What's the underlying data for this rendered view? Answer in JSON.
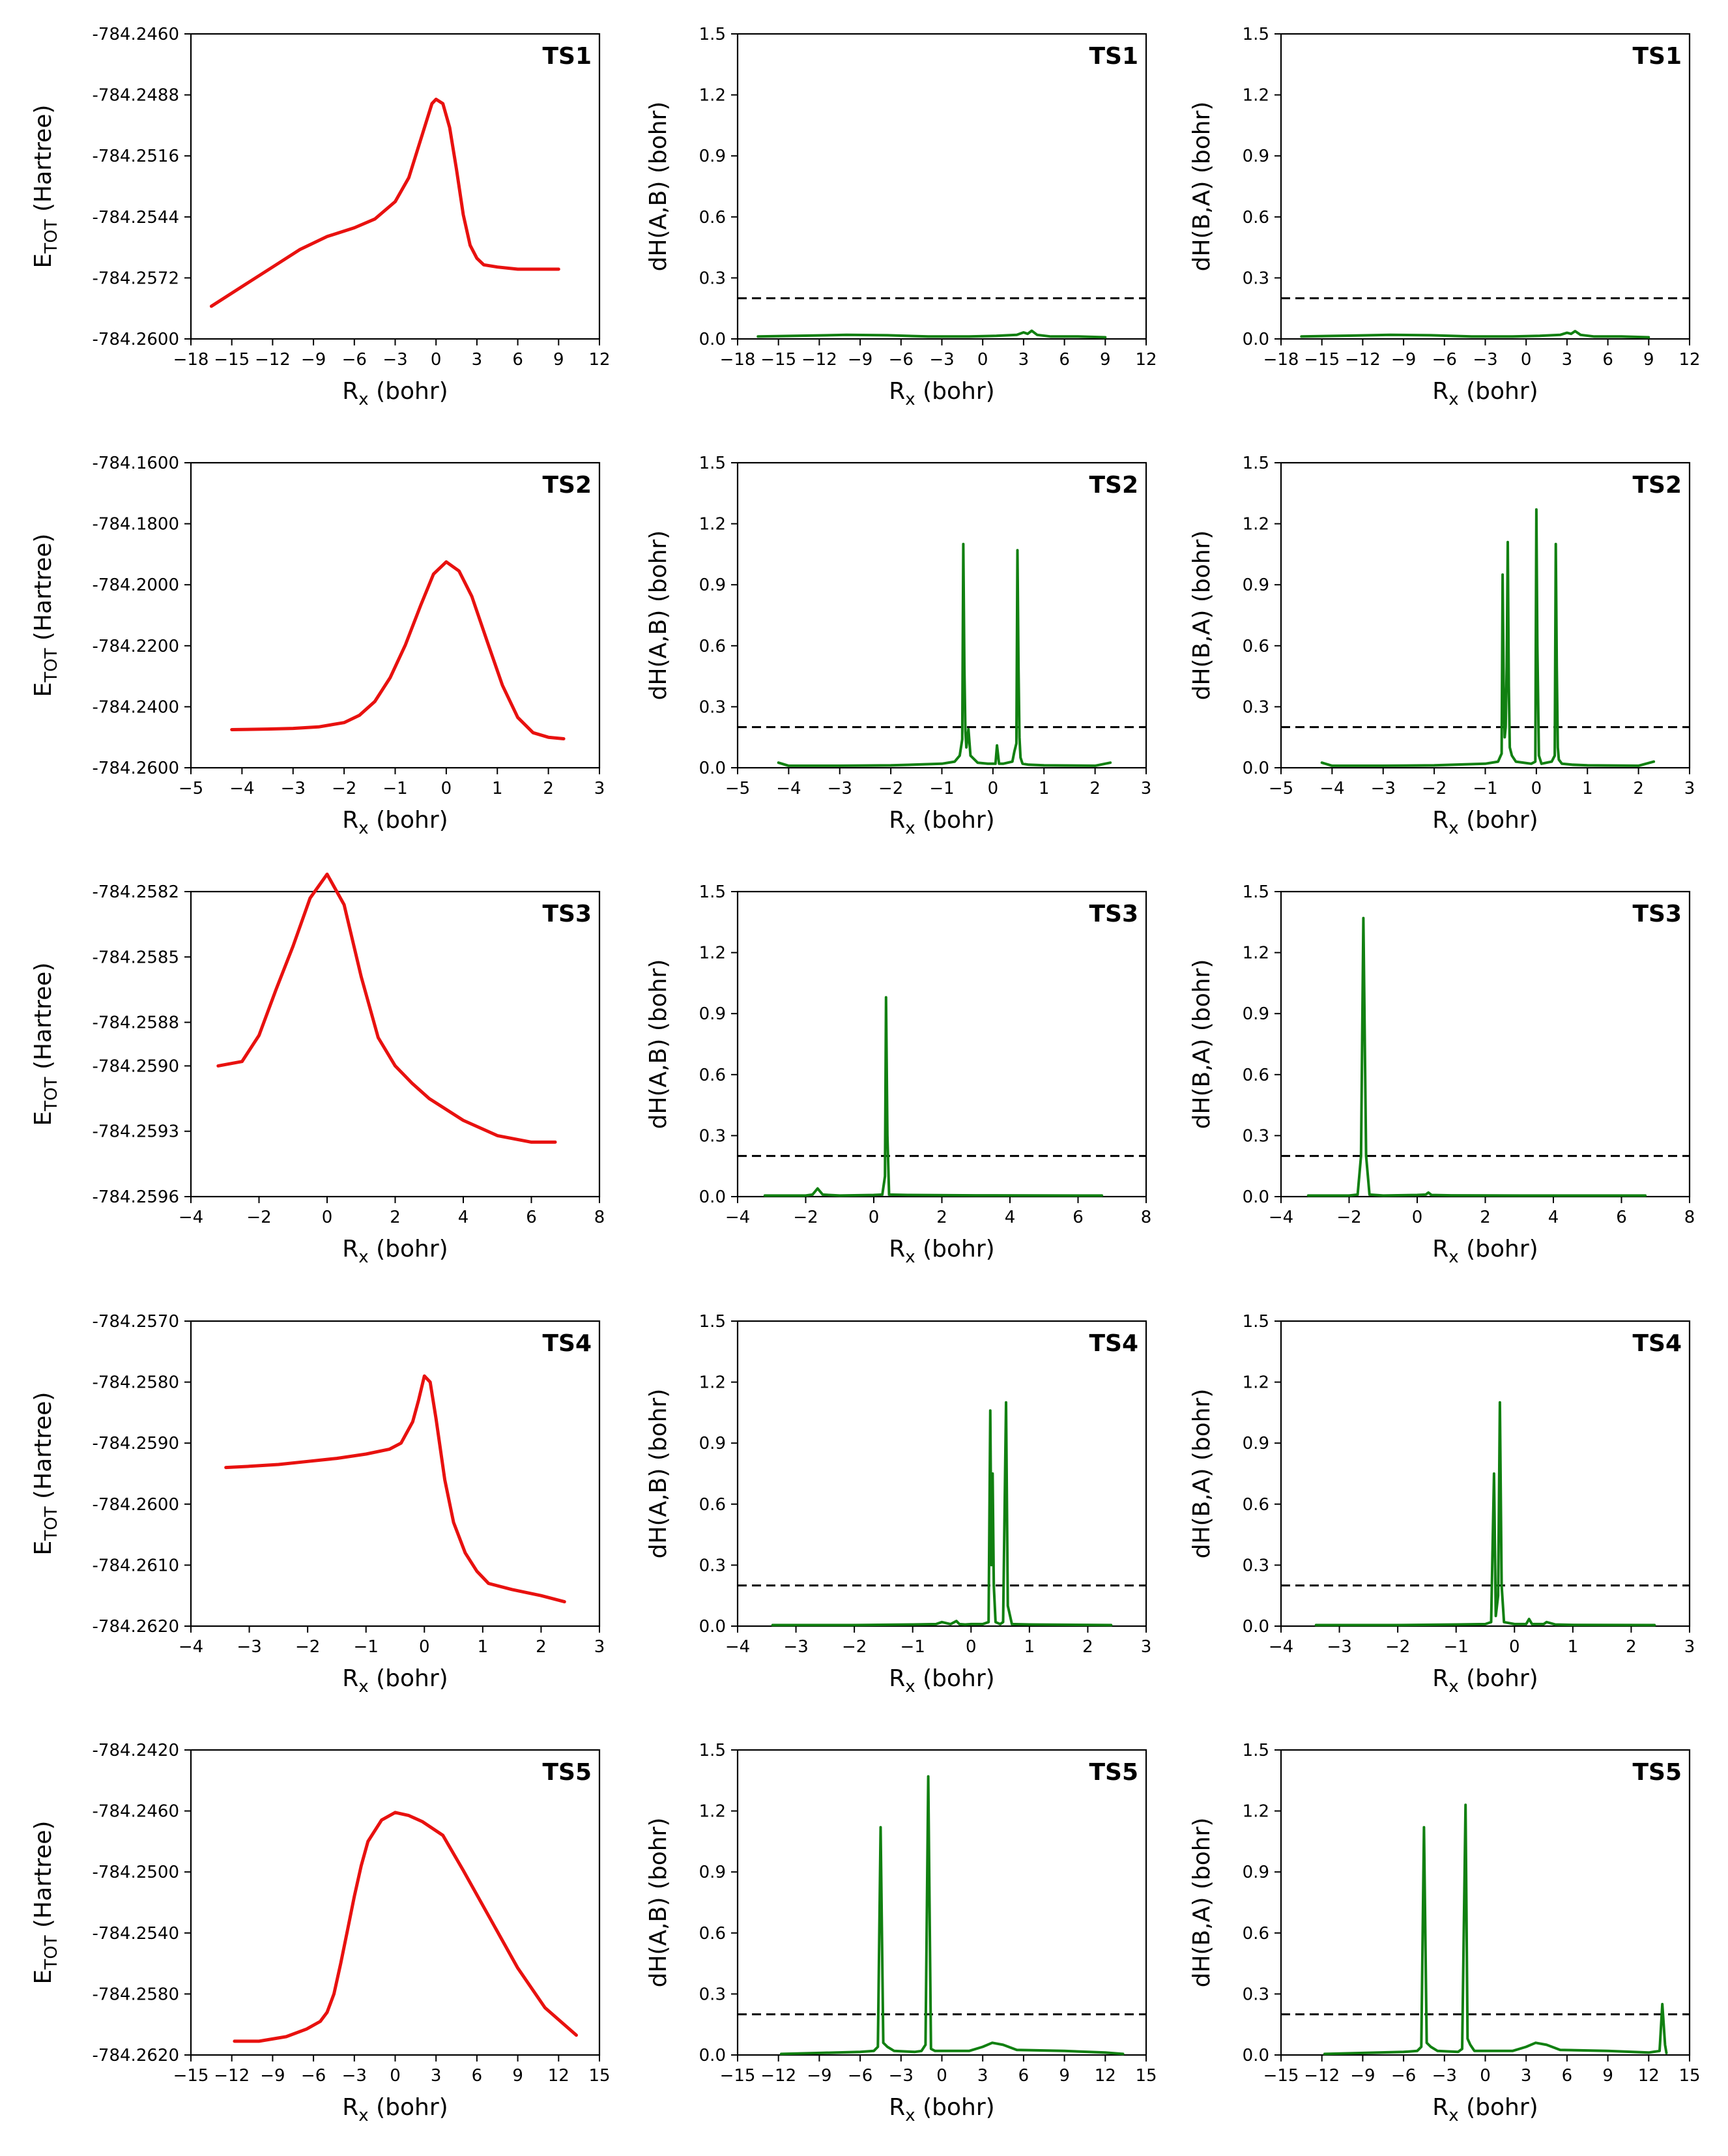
{
  "figure": {
    "ylabel_energy": {
      "main": "E",
      "sub": "TOT",
      "unit": " (Hartree)"
    },
    "xlabel": {
      "main": "R",
      "sub": "x",
      "unit": " (bohr)"
    },
    "ylabel_dh_ab": "dH(A,B) (bohr)",
    "ylabel_dh_ba": "dH(B,A) (bohr)",
    "threshold": 0.2,
    "colors": {
      "energy": "#e8110f",
      "dh": "#118011",
      "threshold": "#000000",
      "axes": "#000000",
      "background": "#ffffff"
    }
  },
  "chart_data": [
    {
      "id": "TS1",
      "title": "TS1",
      "xlim": [
        -18,
        12
      ],
      "xticks": [
        -18,
        -15,
        -12,
        -9,
        -6,
        -3,
        0,
        3,
        6,
        9,
        12
      ],
      "energy": {
        "type": "line",
        "ylim": [
          -784.26,
          -784.246
        ],
        "yticks": [
          -784.26,
          -784.2572,
          -784.2544,
          -784.2516,
          -784.2488,
          -784.246
        ],
        "ydecimals": 4,
        "x": [
          -16.5,
          -14,
          -12,
          -10,
          -8,
          -6,
          -4.5,
          -3,
          -2,
          -1,
          -0.3,
          0,
          0.5,
          1,
          1.5,
          2,
          2.5,
          3,
          3.5,
          4.5,
          6,
          7.5,
          9
        ],
        "y": [
          -784.2585,
          -784.2575,
          -784.2567,
          -784.2559,
          -784.2553,
          -784.2549,
          -784.2545,
          -784.2537,
          -784.2526,
          -784.2506,
          -784.2492,
          -784.249,
          -784.2492,
          -784.2503,
          -784.2522,
          -784.2543,
          -784.2557,
          -784.2563,
          -784.2566,
          -784.2567,
          -784.2568,
          -784.2568,
          -784.2568
        ]
      },
      "dh_ab": {
        "type": "line",
        "ylim": [
          0,
          1.5
        ],
        "yticks": [
          0,
          0.3,
          0.6,
          0.9,
          1.2,
          1.5
        ],
        "ydecimals": 1,
        "x": [
          -16.5,
          -13,
          -10,
          -7,
          -4,
          -1,
          1,
          2.5,
          3,
          3.3,
          3.6,
          4,
          5,
          7,
          9
        ],
        "y": [
          0.012,
          0.016,
          0.02,
          0.018,
          0.012,
          0.012,
          0.015,
          0.02,
          0.032,
          0.025,
          0.04,
          0.02,
          0.012,
          0.012,
          0.008
        ]
      },
      "dh_ba": {
        "type": "line",
        "ylim": [
          0,
          1.5
        ],
        "yticks": [
          0,
          0.3,
          0.6,
          0.9,
          1.2,
          1.5
        ],
        "ydecimals": 1,
        "x": [
          -16.5,
          -13,
          -10,
          -7,
          -4,
          -1,
          1,
          2.5,
          3,
          3.3,
          3.6,
          4,
          5,
          7,
          9
        ],
        "y": [
          0.012,
          0.016,
          0.02,
          0.018,
          0.012,
          0.012,
          0.015,
          0.02,
          0.03,
          0.025,
          0.038,
          0.02,
          0.012,
          0.012,
          0.008
        ]
      }
    },
    {
      "id": "TS2",
      "title": "TS2",
      "xlim": [
        -5,
        3
      ],
      "xticks": [
        -5,
        -4,
        -3,
        -2,
        -1,
        0,
        1,
        2,
        3
      ],
      "energy": {
        "type": "line",
        "ylim": [
          -784.26,
          -784.16
        ],
        "yticks": [
          -784.26,
          -784.24,
          -784.22,
          -784.2,
          -784.18,
          -784.16
        ],
        "ydecimals": 4,
        "x": [
          -4.2,
          -3.5,
          -3,
          -2.5,
          -2,
          -1.7,
          -1.4,
          -1.1,
          -0.8,
          -0.5,
          -0.25,
          0,
          0.25,
          0.5,
          0.8,
          1.1,
          1.4,
          1.7,
          2,
          2.3
        ],
        "y": [
          -784.2475,
          -784.2473,
          -784.2471,
          -784.2466,
          -784.2452,
          -784.2428,
          -784.2383,
          -784.2305,
          -784.2197,
          -784.2067,
          -784.1965,
          -784.1925,
          -784.1955,
          -784.2038,
          -784.2185,
          -784.233,
          -784.2435,
          -784.2485,
          -784.25,
          -784.2505
        ]
      },
      "dh_ab": {
        "type": "line",
        "ylim": [
          0,
          1.5
        ],
        "yticks": [
          0,
          0.3,
          0.6,
          0.9,
          1.2,
          1.5
        ],
        "ydecimals": 1,
        "x": [
          -4.2,
          -4.0,
          -3,
          -2,
          -1,
          -0.75,
          -0.65,
          -0.6,
          -0.58,
          -0.56,
          -0.54,
          -0.52,
          -0.48,
          -0.44,
          -0.3,
          -0.1,
          0.05,
          0.08,
          0.12,
          0.2,
          0.38,
          0.42,
          0.46,
          0.48,
          0.5,
          0.52,
          0.54,
          0.58,
          0.7,
          1,
          2,
          2.3
        ],
        "y": [
          0.025,
          0.01,
          0.01,
          0.012,
          0.02,
          0.03,
          0.06,
          0.14,
          1.1,
          0.5,
          0.18,
          0.1,
          0.19,
          0.06,
          0.025,
          0.02,
          0.02,
          0.11,
          0.02,
          0.02,
          0.03,
          0.08,
          0.12,
          1.07,
          0.5,
          0.15,
          0.05,
          0.02,
          0.015,
          0.012,
          0.01,
          0.025
        ]
      },
      "dh_ba": {
        "type": "line",
        "ylim": [
          0,
          1.5
        ],
        "yticks": [
          0,
          0.3,
          0.6,
          0.9,
          1.2,
          1.5
        ],
        "ydecimals": 1,
        "x": [
          -4.2,
          -4.0,
          -3,
          -2,
          -1,
          -0.75,
          -0.68,
          -0.66,
          -0.64,
          -0.62,
          -0.6,
          -0.58,
          -0.56,
          -0.54,
          -0.52,
          -0.48,
          -0.4,
          -0.1,
          -0.02,
          0.0,
          0.02,
          0.05,
          0.1,
          0.3,
          0.36,
          0.38,
          0.4,
          0.42,
          0.44,
          0.5,
          0.7,
          1,
          2,
          2.3
        ],
        "y": [
          0.025,
          0.01,
          0.01,
          0.012,
          0.02,
          0.03,
          0.07,
          0.95,
          0.4,
          0.15,
          0.2,
          0.5,
          1.11,
          0.4,
          0.1,
          0.06,
          0.03,
          0.02,
          0.03,
          1.27,
          0.6,
          0.06,
          0.02,
          0.03,
          0.06,
          1.1,
          0.5,
          0.1,
          0.04,
          0.02,
          0.015,
          0.012,
          0.01,
          0.03
        ]
      }
    },
    {
      "id": "TS3",
      "title": "TS3",
      "xlim": [
        -4,
        8
      ],
      "xticks": [
        -4,
        -2,
        0,
        2,
        4,
        6,
        8
      ],
      "energy": {
        "type": "line",
        "ylim": [
          -784.2596,
          -784.2582
        ],
        "yticks": [
          -784.2596,
          -784.2593,
          -784.259,
          -784.2588,
          -784.2585,
          -784.2582
        ],
        "ydecimals": 4,
        "x": [
          -3.2,
          -2.5,
          -2,
          -1.5,
          -1,
          -0.5,
          0,
          0.5,
          1,
          1.5,
          2,
          2.5,
          3,
          4,
          5,
          6,
          6.7
        ],
        "y": [
          -784.259,
          -784.25898,
          -784.25886,
          -784.25865,
          -784.25845,
          -784.25823,
          -784.25812,
          -784.25826,
          -784.25859,
          -784.25887,
          -784.259,
          -784.25908,
          -784.25915,
          -784.25925,
          -784.25932,
          -784.25935,
          -784.25935
        ]
      },
      "dh_ab": {
        "type": "line",
        "ylim": [
          0,
          1.5
        ],
        "yticks": [
          0,
          0.3,
          0.6,
          0.9,
          1.2,
          1.5
        ],
        "ydecimals": 1,
        "x": [
          -3.2,
          -2,
          -1.8,
          -1.65,
          -1.5,
          -1,
          0,
          0.25,
          0.33,
          0.36,
          0.4,
          0.45,
          1,
          3,
          6.7
        ],
        "y": [
          0.005,
          0.005,
          0.01,
          0.04,
          0.01,
          0.005,
          0.008,
          0.01,
          0.1,
          0.98,
          0.3,
          0.01,
          0.008,
          0.006,
          0.005
        ]
      },
      "dh_ba": {
        "type": "line",
        "ylim": [
          0,
          1.5
        ],
        "yticks": [
          0,
          0.3,
          0.6,
          0.9,
          1.2,
          1.5
        ],
        "ydecimals": 1,
        "x": [
          -3.2,
          -2,
          -1.75,
          -1.65,
          -1.58,
          -1.5,
          -1.4,
          -1,
          0,
          0.25,
          0.33,
          0.42,
          1,
          3,
          6.7
        ],
        "y": [
          0.005,
          0.005,
          0.01,
          0.2,
          1.37,
          0.2,
          0.01,
          0.005,
          0.008,
          0.01,
          0.02,
          0.008,
          0.006,
          0.005,
          0.005
        ]
      }
    },
    {
      "id": "TS4",
      "title": "TS4",
      "xlim": [
        -4,
        3
      ],
      "xticks": [
        -4,
        -3,
        -2,
        -1,
        0,
        1,
        2,
        3
      ],
      "energy": {
        "type": "line",
        "ylim": [
          -784.262,
          -784.257
        ],
        "yticks": [
          -784.262,
          -784.261,
          -784.26,
          -784.259,
          -784.258,
          -784.257
        ],
        "ydecimals": 4,
        "x": [
          -3.4,
          -3,
          -2.5,
          -2,
          -1.5,
          -1,
          -0.6,
          -0.4,
          -0.2,
          -0.1,
          0,
          0.1,
          0.2,
          0.35,
          0.5,
          0.7,
          0.9,
          1.1,
          1.5,
          2,
          2.4
        ],
        "y": [
          -784.2594,
          -784.25938,
          -784.25935,
          -784.2593,
          -784.25925,
          -784.25918,
          -784.2591,
          -784.259,
          -784.25865,
          -784.2583,
          -784.2579,
          -784.258,
          -784.2586,
          -784.2596,
          -784.2603,
          -784.2608,
          -784.2611,
          -784.2613,
          -784.2614,
          -784.2615,
          -784.2616
        ]
      },
      "dh_ab": {
        "type": "line",
        "ylim": [
          0,
          1.5
        ],
        "yticks": [
          0,
          0.3,
          0.6,
          0.9,
          1.2,
          1.5
        ],
        "ydecimals": 1,
        "x": [
          -3.4,
          -2,
          -1,
          -0.6,
          -0.5,
          -0.35,
          -0.25,
          -0.2,
          -0.1,
          0,
          0.2,
          0.3,
          0.33,
          0.35,
          0.37,
          0.39,
          0.42,
          0.5,
          0.55,
          0.6,
          0.63,
          0.7,
          1,
          2.4
        ],
        "y": [
          0.005,
          0.005,
          0.008,
          0.01,
          0.02,
          0.01,
          0.025,
          0.01,
          0.008,
          0.01,
          0.01,
          0.02,
          1.06,
          0.3,
          0.75,
          0.2,
          0.02,
          0.01,
          0.02,
          1.1,
          0.1,
          0.01,
          0.008,
          0.005
        ]
      },
      "dh_ba": {
        "type": "line",
        "ylim": [
          0,
          1.5
        ],
        "yticks": [
          0,
          0.3,
          0.6,
          0.9,
          1.2,
          1.5
        ],
        "ydecimals": 1,
        "x": [
          -3.4,
          -2,
          -1,
          -0.5,
          -0.4,
          -0.35,
          -0.32,
          -0.28,
          -0.25,
          -0.22,
          -0.18,
          0,
          0.2,
          0.25,
          0.3,
          0.5,
          0.55,
          0.7,
          1,
          2.4
        ],
        "y": [
          0.005,
          0.005,
          0.008,
          0.01,
          0.02,
          0.75,
          0.05,
          0.15,
          1.1,
          0.2,
          0.02,
          0.01,
          0.01,
          0.035,
          0.01,
          0.01,
          0.02,
          0.008,
          0.006,
          0.005
        ]
      }
    },
    {
      "id": "TS5",
      "title": "TS5",
      "xlim": [
        -15,
        15
      ],
      "xticks": [
        -15,
        -12,
        -9,
        -6,
        -3,
        0,
        3,
        6,
        9,
        12,
        15
      ],
      "energy": {
        "type": "line",
        "ylim": [
          -784.262,
          -784.242
        ],
        "yticks": [
          -784.262,
          -784.258,
          -784.254,
          -784.25,
          -784.246,
          -784.242
        ],
        "ydecimals": 4,
        "x": [
          -11.8,
          -10,
          -8,
          -6.5,
          -5.5,
          -5,
          -4.5,
          -4,
          -3.5,
          -3,
          -2.5,
          -2,
          -1,
          0,
          1,
          2,
          3.5,
          5,
          7,
          9,
          11,
          13.3
        ],
        "y": [
          -784.2611,
          -784.2611,
          -784.2608,
          -784.2603,
          -784.2598,
          -784.2592,
          -784.258,
          -784.256,
          -784.2538,
          -784.2516,
          -784.2496,
          -784.248,
          -784.2466,
          -784.2461,
          -784.2463,
          -784.2467,
          -784.2476,
          -784.2499,
          -784.2531,
          -784.2563,
          -784.2589,
          -784.2607
        ]
      },
      "dh_ab": {
        "type": "line",
        "ylim": [
          0,
          1.5
        ],
        "yticks": [
          0,
          0.3,
          0.6,
          0.9,
          1.2,
          1.5
        ],
        "ydecimals": 1,
        "x": [
          -11.8,
          -9,
          -6,
          -5,
          -4.7,
          -4.5,
          -4.3,
          -4,
          -3.5,
          -2,
          -1.5,
          -1.2,
          -1.0,
          -0.8,
          -0.5,
          0,
          2,
          3,
          3.7,
          4.5,
          5.5,
          9,
          12,
          13.3
        ],
        "y": [
          0.005,
          0.01,
          0.015,
          0.02,
          0.04,
          1.12,
          0.06,
          0.04,
          0.02,
          0.015,
          0.02,
          0.05,
          1.37,
          0.03,
          0.02,
          0.02,
          0.02,
          0.04,
          0.06,
          0.05,
          0.025,
          0.02,
          0.012,
          0.005
        ]
      },
      "dh_ba": {
        "type": "line",
        "ylim": [
          0,
          1.5
        ],
        "yticks": [
          0,
          0.3,
          0.6,
          0.9,
          1.2,
          1.5
        ],
        "ydecimals": 1,
        "x": [
          -11.8,
          -9,
          -6,
          -5,
          -4.7,
          -4.5,
          -4.3,
          -4,
          -3.5,
          -2,
          -1.7,
          -1.45,
          -1.3,
          -1.1,
          -0.8,
          0,
          2,
          3,
          3.7,
          4.5,
          5.5,
          9,
          12,
          12.8,
          13.0,
          13.2,
          13.3
        ],
        "y": [
          0.005,
          0.01,
          0.015,
          0.02,
          0.04,
          1.12,
          0.06,
          0.04,
          0.02,
          0.015,
          0.03,
          1.23,
          0.08,
          0.05,
          0.02,
          0.02,
          0.02,
          0.04,
          0.06,
          0.05,
          0.025,
          0.02,
          0.012,
          0.02,
          0.25,
          0.05,
          0.01
        ]
      }
    }
  ]
}
